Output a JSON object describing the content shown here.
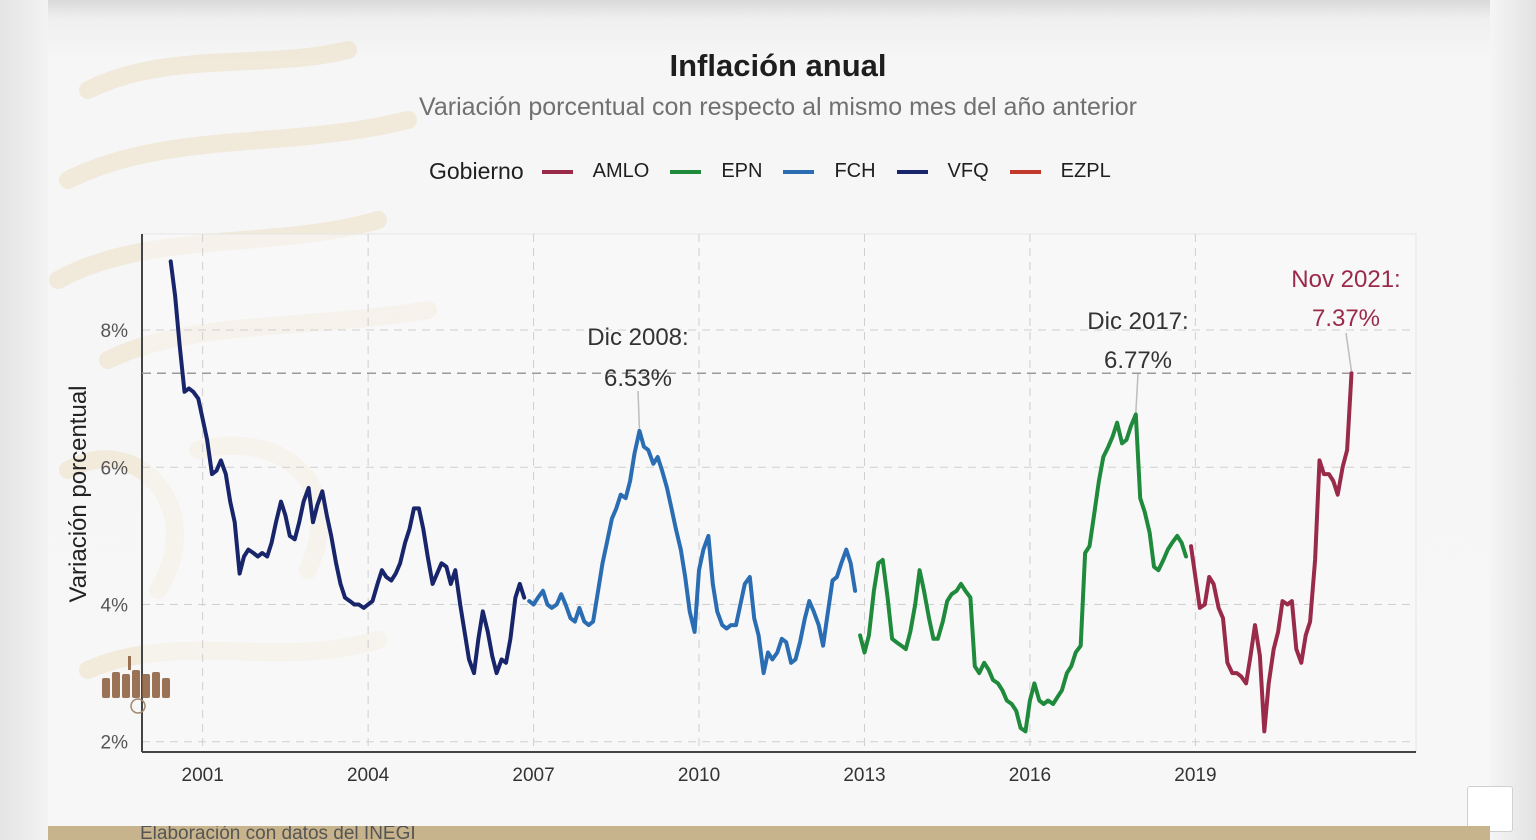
{
  "chart_data": {
    "type": "line",
    "title": "Inflación anual",
    "subtitle": "Variación porcentual con respecto al mismo mes del año anterior",
    "ylabel": "Variación porcentual",
    "xlabel": "",
    "xlim": [
      1999.9,
      2023.0
    ],
    "ylim": [
      1.85,
      9.4
    ],
    "x_ticks": [
      2001,
      2004,
      2007,
      2010,
      2013,
      2016,
      2019
    ],
    "x_tick_labels": [
      "2001",
      "2004",
      "2007",
      "2010",
      "2013",
      "2016",
      "2019"
    ],
    "y_ticks": [
      2,
      4,
      6,
      8
    ],
    "y_tick_labels": [
      "2%",
      "4%",
      "6%",
      "8%"
    ],
    "grid": true,
    "legend_position": "top",
    "legend_title": "Gobierno",
    "legend_order": [
      "AMLO",
      "EPN",
      "FCH",
      "VFQ",
      "EZPL"
    ],
    "colors": {
      "AMLO": "#9a2a4a",
      "EPN": "#1f8a3b",
      "FCH": "#2a6db3",
      "VFQ": "#18256a",
      "EZPL": "#c0392b"
    },
    "reference_line": 7.37,
    "series": [
      {
        "name": "VFQ",
        "points": [
          [
            2000.42,
            9.0
          ],
          [
            2000.5,
            8.5
          ],
          [
            2000.58,
            7.8
          ],
          [
            2000.67,
            7.1
          ],
          [
            2000.75,
            7.15
          ],
          [
            2000.83,
            7.1
          ],
          [
            2000.92,
            7.0
          ],
          [
            2001.0,
            6.7
          ],
          [
            2001.08,
            6.4
          ],
          [
            2001.17,
            5.9
          ],
          [
            2001.25,
            5.95
          ],
          [
            2001.33,
            6.1
          ],
          [
            2001.42,
            5.9
          ],
          [
            2001.5,
            5.5
          ],
          [
            2001.58,
            5.2
          ],
          [
            2001.67,
            4.45
          ],
          [
            2001.75,
            4.7
          ],
          [
            2001.83,
            4.8
          ],
          [
            2001.92,
            4.75
          ],
          [
            2002.0,
            4.7
          ],
          [
            2002.08,
            4.75
          ],
          [
            2002.17,
            4.7
          ],
          [
            2002.25,
            4.9
          ],
          [
            2002.33,
            5.2
          ],
          [
            2002.42,
            5.5
          ],
          [
            2002.5,
            5.3
          ],
          [
            2002.58,
            5.0
          ],
          [
            2002.67,
            4.95
          ],
          [
            2002.75,
            5.2
          ],
          [
            2002.83,
            5.5
          ],
          [
            2002.92,
            5.7
          ],
          [
            2003.0,
            5.2
          ],
          [
            2003.08,
            5.45
          ],
          [
            2003.17,
            5.65
          ],
          [
            2003.25,
            5.3
          ],
          [
            2003.33,
            5.0
          ],
          [
            2003.42,
            4.6
          ],
          [
            2003.5,
            4.3
          ],
          [
            2003.58,
            4.1
          ],
          [
            2003.67,
            4.05
          ],
          [
            2003.75,
            4.0
          ],
          [
            2003.83,
            4.0
          ],
          [
            2003.92,
            3.95
          ],
          [
            2004.0,
            4.0
          ],
          [
            2004.08,
            4.05
          ],
          [
            2004.17,
            4.3
          ],
          [
            2004.25,
            4.5
          ],
          [
            2004.33,
            4.4
          ],
          [
            2004.42,
            4.35
          ],
          [
            2004.5,
            4.45
          ],
          [
            2004.58,
            4.6
          ],
          [
            2004.67,
            4.9
          ],
          [
            2004.75,
            5.1
          ],
          [
            2004.83,
            5.4
          ],
          [
            2004.92,
            5.4
          ],
          [
            2005.0,
            5.1
          ],
          [
            2005.08,
            4.7
          ],
          [
            2005.17,
            4.3
          ],
          [
            2005.25,
            4.45
          ],
          [
            2005.33,
            4.6
          ],
          [
            2005.42,
            4.55
          ],
          [
            2005.5,
            4.3
          ],
          [
            2005.58,
            4.5
          ],
          [
            2005.67,
            4.0
          ],
          [
            2005.75,
            3.6
          ],
          [
            2005.83,
            3.2
          ],
          [
            2005.92,
            3.0
          ],
          [
            2006.0,
            3.5
          ],
          [
            2006.08,
            3.9
          ],
          [
            2006.17,
            3.6
          ],
          [
            2006.25,
            3.25
          ],
          [
            2006.33,
            3.0
          ],
          [
            2006.42,
            3.2
          ],
          [
            2006.5,
            3.15
          ],
          [
            2006.58,
            3.5
          ],
          [
            2006.67,
            4.1
          ],
          [
            2006.75,
            4.3
          ],
          [
            2006.83,
            4.1
          ]
        ]
      },
      {
        "name": "FCH",
        "points": [
          [
            2006.92,
            4.05
          ],
          [
            2007.0,
            4.0
          ],
          [
            2007.08,
            4.1
          ],
          [
            2007.17,
            4.2
          ],
          [
            2007.25,
            4.0
          ],
          [
            2007.33,
            3.95
          ],
          [
            2007.42,
            4.0
          ],
          [
            2007.5,
            4.15
          ],
          [
            2007.58,
            4.0
          ],
          [
            2007.67,
            3.8
          ],
          [
            2007.75,
            3.75
          ],
          [
            2007.83,
            3.95
          ],
          [
            2007.92,
            3.75
          ],
          [
            2008.0,
            3.7
          ],
          [
            2008.08,
            3.75
          ],
          [
            2008.17,
            4.2
          ],
          [
            2008.25,
            4.6
          ],
          [
            2008.33,
            4.9
          ],
          [
            2008.42,
            5.25
          ],
          [
            2008.5,
            5.4
          ],
          [
            2008.58,
            5.6
          ],
          [
            2008.67,
            5.55
          ],
          [
            2008.75,
            5.8
          ],
          [
            2008.83,
            6.2
          ],
          [
            2008.92,
            6.53
          ],
          [
            2009.0,
            6.3
          ],
          [
            2009.08,
            6.25
          ],
          [
            2009.17,
            6.05
          ],
          [
            2009.25,
            6.15
          ],
          [
            2009.33,
            5.95
          ],
          [
            2009.42,
            5.7
          ],
          [
            2009.5,
            5.4
          ],
          [
            2009.58,
            5.1
          ],
          [
            2009.67,
            4.8
          ],
          [
            2009.75,
            4.4
          ],
          [
            2009.83,
            3.9
          ],
          [
            2009.92,
            3.6
          ],
          [
            2010.0,
            4.5
          ],
          [
            2010.08,
            4.8
          ],
          [
            2010.17,
            5.0
          ],
          [
            2010.25,
            4.3
          ],
          [
            2010.33,
            3.9
          ],
          [
            2010.42,
            3.7
          ],
          [
            2010.5,
            3.65
          ],
          [
            2010.58,
            3.7
          ],
          [
            2010.67,
            3.7
          ],
          [
            2010.75,
            4.0
          ],
          [
            2010.83,
            4.3
          ],
          [
            2010.92,
            4.4
          ],
          [
            2011.0,
            3.8
          ],
          [
            2011.08,
            3.55
          ],
          [
            2011.17,
            3.0
          ],
          [
            2011.25,
            3.3
          ],
          [
            2011.33,
            3.2
          ],
          [
            2011.42,
            3.3
          ],
          [
            2011.5,
            3.5
          ],
          [
            2011.58,
            3.45
          ],
          [
            2011.67,
            3.15
          ],
          [
            2011.75,
            3.2
          ],
          [
            2011.83,
            3.45
          ],
          [
            2011.92,
            3.8
          ],
          [
            2012.0,
            4.05
          ],
          [
            2012.08,
            3.9
          ],
          [
            2012.17,
            3.7
          ],
          [
            2012.25,
            3.4
          ],
          [
            2012.33,
            3.85
          ],
          [
            2012.42,
            4.35
          ],
          [
            2012.5,
            4.4
          ],
          [
            2012.58,
            4.6
          ],
          [
            2012.67,
            4.8
          ],
          [
            2012.75,
            4.6
          ],
          [
            2012.83,
            4.2
          ]
        ]
      },
      {
        "name": "EPN",
        "points": [
          [
            2012.92,
            3.55
          ],
          [
            2013.0,
            3.3
          ],
          [
            2013.08,
            3.55
          ],
          [
            2013.17,
            4.2
          ],
          [
            2013.25,
            4.6
          ],
          [
            2013.33,
            4.65
          ],
          [
            2013.42,
            4.1
          ],
          [
            2013.5,
            3.5
          ],
          [
            2013.58,
            3.45
          ],
          [
            2013.67,
            3.4
          ],
          [
            2013.75,
            3.35
          ],
          [
            2013.83,
            3.6
          ],
          [
            2013.92,
            4.0
          ],
          [
            2014.0,
            4.5
          ],
          [
            2014.08,
            4.2
          ],
          [
            2014.17,
            3.8
          ],
          [
            2014.25,
            3.5
          ],
          [
            2014.33,
            3.5
          ],
          [
            2014.42,
            3.75
          ],
          [
            2014.5,
            4.05
          ],
          [
            2014.58,
            4.15
          ],
          [
            2014.67,
            4.2
          ],
          [
            2014.75,
            4.3
          ],
          [
            2014.83,
            4.2
          ],
          [
            2014.92,
            4.1
          ],
          [
            2015.0,
            3.1
          ],
          [
            2015.08,
            3.0
          ],
          [
            2015.17,
            3.15
          ],
          [
            2015.25,
            3.05
          ],
          [
            2015.33,
            2.9
          ],
          [
            2015.42,
            2.85
          ],
          [
            2015.5,
            2.75
          ],
          [
            2015.58,
            2.6
          ],
          [
            2015.67,
            2.55
          ],
          [
            2015.75,
            2.45
          ],
          [
            2015.83,
            2.2
          ],
          [
            2015.92,
            2.15
          ],
          [
            2016.0,
            2.6
          ],
          [
            2016.08,
            2.85
          ],
          [
            2016.17,
            2.6
          ],
          [
            2016.25,
            2.55
          ],
          [
            2016.33,
            2.6
          ],
          [
            2016.42,
            2.55
          ],
          [
            2016.5,
            2.65
          ],
          [
            2016.58,
            2.75
          ],
          [
            2016.67,
            3.0
          ],
          [
            2016.75,
            3.1
          ],
          [
            2016.83,
            3.3
          ],
          [
            2016.92,
            3.4
          ],
          [
            2017.0,
            4.75
          ],
          [
            2017.08,
            4.85
          ],
          [
            2017.17,
            5.35
          ],
          [
            2017.25,
            5.8
          ],
          [
            2017.33,
            6.15
          ],
          [
            2017.42,
            6.3
          ],
          [
            2017.5,
            6.45
          ],
          [
            2017.58,
            6.65
          ],
          [
            2017.67,
            6.35
          ],
          [
            2017.75,
            6.4
          ],
          [
            2017.83,
            6.6
          ],
          [
            2017.92,
            6.77
          ],
          [
            2018.0,
            5.55
          ],
          [
            2018.08,
            5.35
          ],
          [
            2018.17,
            5.05
          ],
          [
            2018.25,
            4.55
          ],
          [
            2018.33,
            4.5
          ],
          [
            2018.42,
            4.65
          ],
          [
            2018.5,
            4.8
          ],
          [
            2018.58,
            4.9
          ],
          [
            2018.67,
            5.0
          ],
          [
            2018.75,
            4.9
          ],
          [
            2018.83,
            4.7
          ]
        ]
      },
      {
        "name": "AMLO",
        "points": [
          [
            2018.92,
            4.85
          ],
          [
            2019.0,
            4.4
          ],
          [
            2019.08,
            3.95
          ],
          [
            2019.17,
            4.0
          ],
          [
            2019.25,
            4.4
          ],
          [
            2019.33,
            4.3
          ],
          [
            2019.42,
            3.95
          ],
          [
            2019.5,
            3.8
          ],
          [
            2019.58,
            3.15
          ],
          [
            2019.67,
            3.0
          ],
          [
            2019.75,
            3.0
          ],
          [
            2019.83,
            2.95
          ],
          [
            2019.92,
            2.85
          ],
          [
            2020.0,
            3.25
          ],
          [
            2020.08,
            3.7
          ],
          [
            2020.17,
            3.25
          ],
          [
            2020.25,
            2.15
          ],
          [
            2020.33,
            2.85
          ],
          [
            2020.42,
            3.35
          ],
          [
            2020.5,
            3.6
          ],
          [
            2020.58,
            4.05
          ],
          [
            2020.67,
            4.0
          ],
          [
            2020.75,
            4.05
          ],
          [
            2020.83,
            3.35
          ],
          [
            2020.92,
            3.15
          ],
          [
            2021.0,
            3.55
          ],
          [
            2021.08,
            3.75
          ],
          [
            2021.17,
            4.65
          ],
          [
            2021.25,
            6.1
          ],
          [
            2021.33,
            5.9
          ],
          [
            2021.42,
            5.9
          ],
          [
            2021.5,
            5.8
          ],
          [
            2021.58,
            5.6
          ],
          [
            2021.67,
            6.0
          ],
          [
            2021.75,
            6.25
          ],
          [
            2021.83,
            7.37
          ]
        ]
      }
    ],
    "annotations": [
      {
        "line1": "Dic 2008:",
        "line2": "6.53%",
        "x": 2008.92,
        "y": 6.53,
        "color": "#333333"
      },
      {
        "line1": "Dic 2017:",
        "line2": "6.77%",
        "x": 2017.92,
        "y": 6.77,
        "color": "#333333"
      },
      {
        "line1": "Nov 2021:",
        "line2": "7.37%",
        "x": 2021.83,
        "y": 7.37,
        "color": "#9a2a4a"
      }
    ]
  },
  "footer": {
    "source": "Elaboración con datos del INEGI"
  }
}
